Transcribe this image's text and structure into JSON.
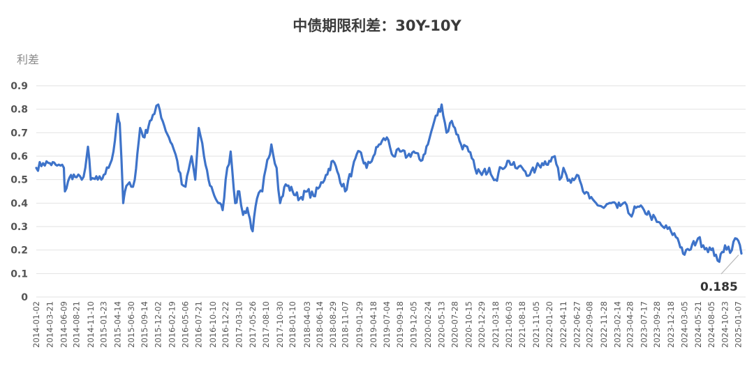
{
  "chart_data": {
    "type": "line",
    "title": "中债期限利差：30Y-10Y",
    "ylabel": "利差",
    "xlabel": "",
    "ylim": [
      0,
      0.9
    ],
    "yticks": [
      "0",
      "0.1",
      "0.2",
      "0.3",
      "0.4",
      "0.5",
      "0.6",
      "0.7",
      "0.8",
      "0.9"
    ],
    "grid": true,
    "legend": "none",
    "line_color": "#3e73c9",
    "x_tick_labels": [
      "2014-01-02",
      "2014-03-21",
      "2014-06-09",
      "2014-08-21",
      "2014-11-10",
      "2015-01-23",
      "2015-04-14",
      "2015-06-30",
      "2015-09-14",
      "2015-12-02",
      "2016-02-19",
      "2016-05-06",
      "2016-07-21",
      "2016-10-10",
      "2016-12-22",
      "2017-03-10",
      "2017-05-26",
      "2017-08-10",
      "2017-10-30",
      "2018-01-10",
      "2018-04-03",
      "2018-06-14",
      "2018-08-29",
      "2018-11-07",
      "2019-01-29",
      "2019-04-18",
      "2019-07-04",
      "2019-09-18",
      "2019-12-05",
      "2020-02-24",
      "2020-05-13",
      "2020-07-28",
      "2020-10-15",
      "2020-12-29",
      "2021-03-18",
      "2021-06-03",
      "2021-08-18",
      "2021-11-05",
      "2022-01-20",
      "2022-04-11",
      "2022-06-27",
      "2022-09-08",
      "2022-11-28",
      "2023-02-14",
      "2023-04-28",
      "2023-07-17",
      "2023-09-28",
      "2023-12-18",
      "2024-03-05",
      "2024-05-21",
      "2024-08-05",
      "2024-10-23",
      "2025-01-07"
    ],
    "series": [
      {
        "x": [
          "2014-01-02",
          "2014-02-10",
          "2014-03-21",
          "2014-05-01",
          "2014-06-09",
          "2014-06-15",
          "2014-07-20",
          "2014-08-21",
          "2014-09-20",
          "2014-10-10",
          "2014-10-25",
          "2014-11-10",
          "2014-12-20",
          "2015-01-10",
          "2015-01-23",
          "2015-02-20",
          "2015-03-20",
          "2015-04-14",
          "2015-04-25",
          "2015-05-15",
          "2015-05-25",
          "2015-06-10",
          "2015-06-30",
          "2015-07-20",
          "2015-08-20",
          "2015-09-14",
          "2015-10-15",
          "2015-11-10",
          "2015-12-02",
          "2016-01-05",
          "2016-02-19",
          "2016-03-20",
          "2016-04-15",
          "2016-05-06",
          "2016-06-10",
          "2016-07-01",
          "2016-07-21",
          "2016-08-20",
          "2016-09-15",
          "2016-10-10",
          "2016-11-10",
          "2016-12-05",
          "2016-12-22",
          "2017-01-20",
          "2017-02-15",
          "2017-03-10",
          "2017-04-01",
          "2017-04-25",
          "2017-05-26",
          "2017-06-20",
          "2017-07-20",
          "2017-08-10",
          "2017-09-10",
          "2017-10-10",
          "2017-10-30",
          "2017-12-01",
          "2018-01-10",
          "2018-02-20",
          "2018-04-03",
          "2018-05-10",
          "2018-06-14",
          "2018-07-20",
          "2018-08-29",
          "2018-10-01",
          "2018-11-07",
          "2018-12-20",
          "2019-01-29",
          "2019-03-10",
          "2019-04-18",
          "2019-05-20",
          "2019-07-04",
          "2019-08-10",
          "2019-09-18",
          "2019-10-30",
          "2019-12-05",
          "2020-01-15",
          "2020-02-24",
          "2020-04-01",
          "2020-05-13",
          "2020-06-10",
          "2020-07-10",
          "2020-07-28",
          "2020-09-01",
          "2020-10-15",
          "2020-11-20",
          "2020-12-29",
          "2021-02-10",
          "2021-03-18",
          "2021-04-20",
          "2021-06-03",
          "2021-07-10",
          "2021-08-18",
          "2021-09-30",
          "2021-11-05",
          "2021-12-10",
          "2022-01-20",
          "2022-02-20",
          "2022-03-20",
          "2022-04-11",
          "2022-05-15",
          "2022-06-27",
          "2022-08-01",
          "2022-09-08",
          "2022-10-15",
          "2022-11-28",
          "2023-01-10",
          "2023-02-14",
          "2023-03-20",
          "2023-04-28",
          "2023-06-01",
          "2023-07-17",
          "2023-08-20",
          "2023-09-28",
          "2023-11-01",
          "2023-12-18",
          "2024-01-25",
          "2024-03-05",
          "2024-04-01",
          "2024-05-21",
          "2024-06-20",
          "2024-08-05",
          "2024-09-01",
          "2024-09-20",
          "2024-10-23",
          "2024-12-01",
          "2024-12-20",
          "2025-01-07",
          "2025-01-25"
        ],
        "values": [
          0.55,
          0.57,
          0.57,
          0.56,
          0.55,
          0.45,
          0.52,
          0.51,
          0.5,
          0.55,
          0.64,
          0.5,
          0.5,
          0.5,
          0.52,
          0.55,
          0.62,
          0.78,
          0.74,
          0.4,
          0.45,
          0.48,
          0.47,
          0.5,
          0.72,
          0.68,
          0.75,
          0.78,
          0.82,
          0.73,
          0.65,
          0.58,
          0.48,
          0.47,
          0.6,
          0.5,
          0.72,
          0.6,
          0.5,
          0.45,
          0.4,
          0.37,
          0.5,
          0.62,
          0.4,
          0.45,
          0.35,
          0.38,
          0.28,
          0.42,
          0.45,
          0.55,
          0.65,
          0.55,
          0.4,
          0.48,
          0.45,
          0.42,
          0.45,
          0.43,
          0.47,
          0.52,
          0.58,
          0.52,
          0.45,
          0.55,
          0.62,
          0.55,
          0.6,
          0.65,
          0.68,
          0.6,
          0.62,
          0.6,
          0.62,
          0.58,
          0.65,
          0.75,
          0.82,
          0.7,
          0.75,
          0.72,
          0.65,
          0.62,
          0.55,
          0.52,
          0.55,
          0.5,
          0.55,
          0.58,
          0.55,
          0.55,
          0.52,
          0.55,
          0.57,
          0.58,
          0.6,
          0.5,
          0.55,
          0.5,
          0.52,
          0.45,
          0.42,
          0.4,
          0.38,
          0.4,
          0.38,
          0.4,
          0.35,
          0.38,
          0.37,
          0.35,
          0.32,
          0.3,
          0.28,
          0.25,
          0.18,
          0.2,
          0.25,
          0.22,
          0.2,
          0.18,
          0.15,
          0.22,
          0.2,
          0.25,
          0.24,
          0.185
        ]
      }
    ],
    "annotations": [
      {
        "text": "0.185",
        "x": "2025-01-25",
        "y": 0.185
      }
    ]
  }
}
